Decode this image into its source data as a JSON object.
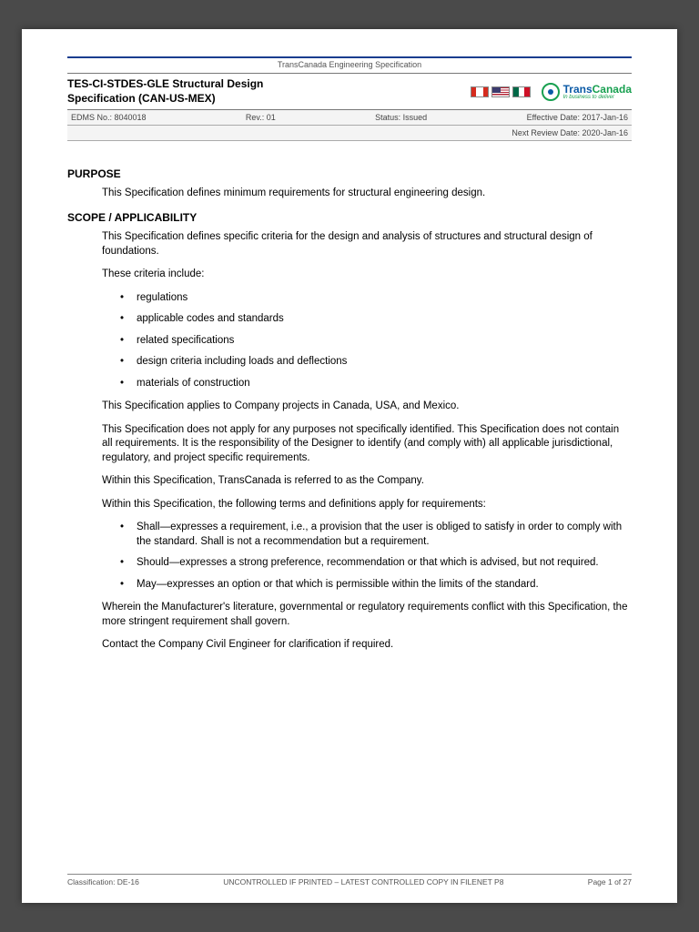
{
  "header": {
    "topLabel": "TransCanada Engineering Specification",
    "title1": "TES-CI-STDES-GLE Structural Design",
    "title2": "Specification (CAN-US-MEX)",
    "edms": "EDMS No.: 8040018",
    "rev": "Rev.: 01",
    "status": "Status: Issued",
    "effective": "Effective Date: 2017-Jan-16",
    "review": "Next Review Date: 2020-Jan-16",
    "logoName": "TransCanada",
    "logoTag": "In business to deliver"
  },
  "sections": {
    "purpose": {
      "heading": "PURPOSE",
      "p1": "This Specification defines minimum requirements for structural engineering design."
    },
    "scope": {
      "heading": "SCOPE / APPLICABILITY",
      "p1": "This Specification defines specific criteria for the design and analysis of structures and structural design of foundations.",
      "p2": "These criteria include:",
      "bullets1": [
        "regulations",
        "applicable codes and standards",
        "related specifications",
        "design criteria including loads and deflections",
        "materials of construction"
      ],
      "p3": "This Specification applies to Company projects in Canada, USA, and Mexico.",
      "p4": "This Specification does not apply for any purposes not specifically identified. This Specification does not contain all requirements. It is the responsibility of the Designer to identify (and comply with) all applicable jurisdictional, regulatory, and project specific requirements.",
      "p5": "Within this Specification, TransCanada is referred to as the Company.",
      "p6": "Within this Specification, the following terms and definitions apply for requirements:",
      "bullets2": [
        "Shall—expresses a requirement, i.e., a provision that the user is obliged to satisfy in order to comply with the standard. Shall is not a recommendation but a requirement.",
        "Should—expresses a strong preference, recommendation or that which is advised, but not required.",
        "May—expresses an option or that which is permissible within the limits of the standard."
      ],
      "p7": "Wherein the Manufacturer's literature, governmental or regulatory requirements conflict with this Specification, the more stringent requirement shall govern.",
      "p8": "Contact the Company Civil Engineer for clarification if required."
    }
  },
  "footer": {
    "classification": "Classification: DE-16",
    "notice": "UNCONTROLLED IF PRINTED – LATEST CONTROLLED COPY IN FILENET P8",
    "page": "Page 1 of 27"
  }
}
